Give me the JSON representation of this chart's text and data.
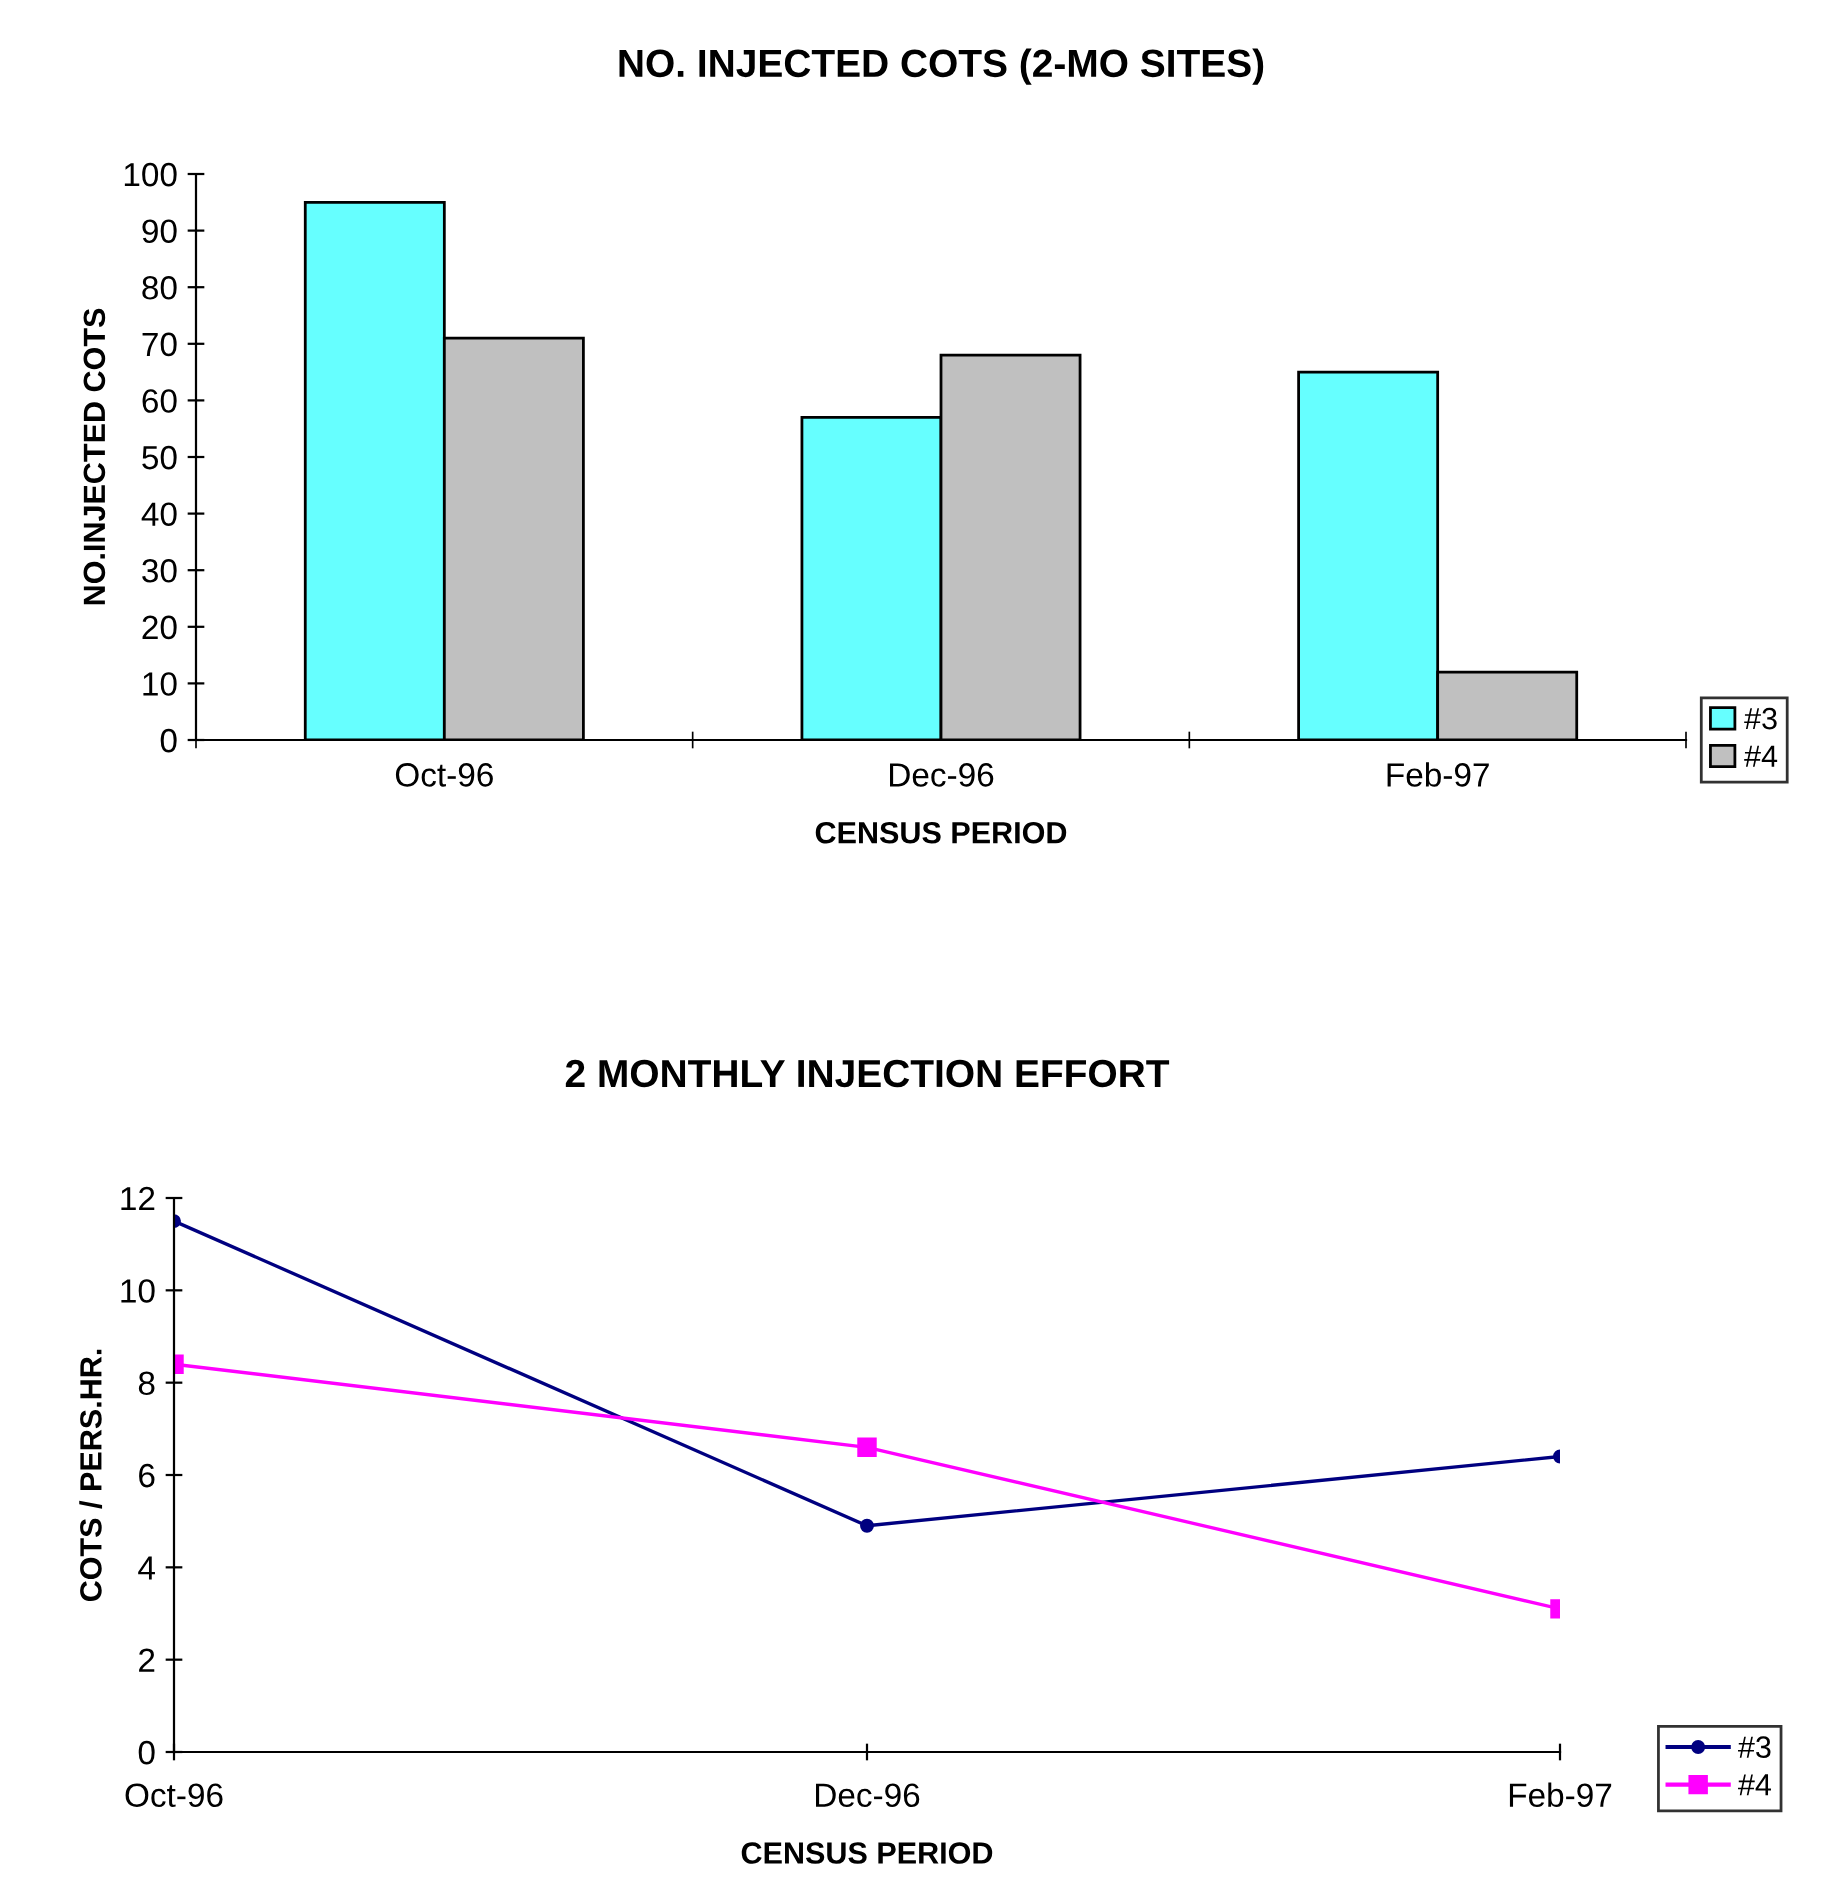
{
  "chart_data": [
    {
      "type": "bar",
      "title": "NO. INJECTED COTS (2-MO SITES)",
      "xlabel": "CENSUS PERIOD",
      "ylabel": "NO.INJECTED COTS",
      "categories": [
        "Oct-96",
        "Dec-96",
        "Feb-97"
      ],
      "ylim": [
        0,
        100
      ],
      "yticks": [
        0,
        10,
        20,
        30,
        40,
        50,
        60,
        70,
        80,
        90,
        100
      ],
      "grid": false,
      "legend": "right",
      "series": [
        {
          "name": "#3",
          "color": "#66ffff",
          "values": [
            95,
            57,
            65
          ]
        },
        {
          "name": "#4",
          "color": "#c0c0c0",
          "values": [
            71,
            68,
            12
          ]
        }
      ]
    },
    {
      "type": "line",
      "title": "2 MONTHLY INJECTION EFFORT",
      "xlabel": "CENSUS PERIOD",
      "ylabel": "COTS / PERS.HR.",
      "categories": [
        "Oct-96",
        "Dec-96",
        "Feb-97"
      ],
      "ylim": [
        0,
        12
      ],
      "yticks": [
        0,
        2,
        4,
        6,
        8,
        10,
        12
      ],
      "grid": false,
      "legend": "right",
      "line_style": "solid",
      "series": [
        {
          "name": "#3",
          "color": "#000080",
          "marker": "circle",
          "values": [
            11.5,
            4.9,
            6.4
          ]
        },
        {
          "name": "#4",
          "color": "#ff00ff",
          "marker": "square",
          "values": [
            8.4,
            6.6,
            3.1
          ]
        }
      ]
    }
  ]
}
